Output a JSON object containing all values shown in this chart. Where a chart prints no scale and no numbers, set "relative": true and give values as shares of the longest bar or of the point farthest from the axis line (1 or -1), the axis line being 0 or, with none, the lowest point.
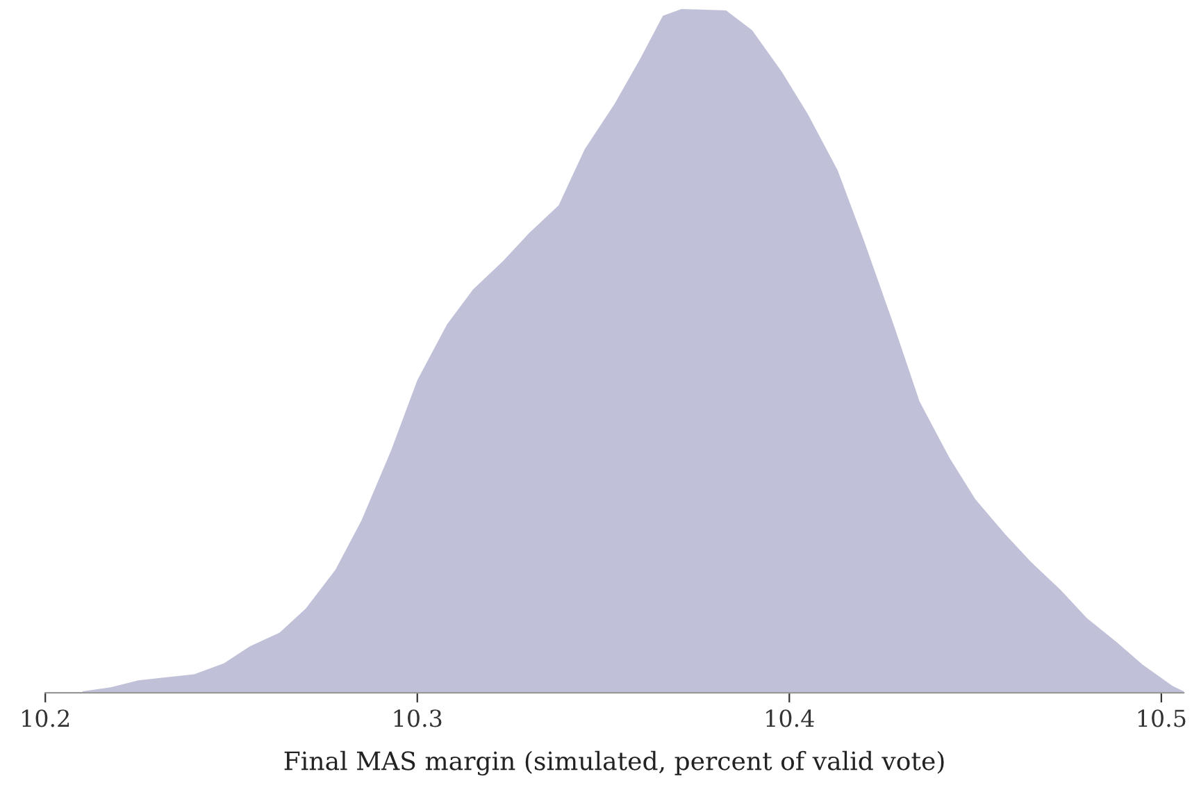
{
  "chart_data": {
    "type": "area",
    "relative": true,
    "xlabel": "Final MAS margin (simulated, percent of valid vote)",
    "x": [
      10.21,
      10.2176,
      10.225,
      10.233,
      10.24,
      10.248,
      10.255,
      10.263,
      10.27,
      10.278,
      10.285,
      10.293,
      10.3,
      10.308,
      10.315,
      10.323,
      10.33,
      10.338,
      10.345,
      10.353,
      10.36,
      10.366,
      10.371,
      10.383,
      10.39,
      10.398,
      10.405,
      10.413,
      10.42,
      10.428,
      10.435,
      10.443,
      10.45,
      10.458,
      10.465,
      10.473,
      10.48,
      10.488,
      10.495,
      10.503,
      10.506
    ],
    "series": [
      {
        "color": "#c0c0d8",
        "values": [
          0.002,
          0.008,
          0.018,
          0.023,
          0.027,
          0.043,
          0.068,
          0.088,
          0.123,
          0.18,
          0.252,
          0.355,
          0.457,
          0.539,
          0.59,
          0.631,
          0.672,
          0.713,
          0.795,
          0.861,
          0.928,
          0.99,
          1.0,
          0.998,
          0.969,
          0.908,
          0.846,
          0.764,
          0.662,
          0.539,
          0.426,
          0.344,
          0.283,
          0.232,
          0.191,
          0.15,
          0.109,
          0.074,
          0.041,
          0.01,
          0.002
        ]
      }
    ],
    "xlim": [
      10.2,
      10.506
    ],
    "xticks": [
      10.2,
      10.3,
      10.4,
      10.5
    ],
    "grid": false,
    "tick_labels": "x"
  }
}
